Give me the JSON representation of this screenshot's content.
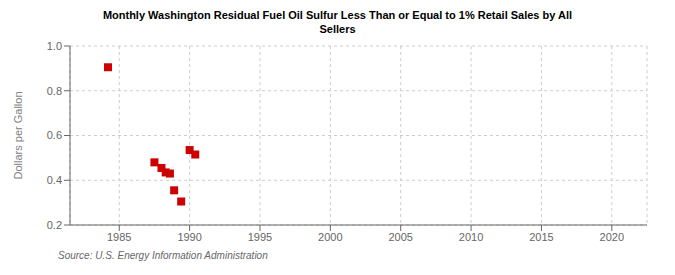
{
  "chart_data": {
    "type": "scatter",
    "title": "Monthly Washington Residual Fuel Oil Sulfur Less Than or Equal to 1% Retail Sales by All\nSellers",
    "ylabel": "Dollars per Gallon",
    "source": "Source: U.S. Energy Information Administration",
    "color": "#cc0000",
    "marker": "square",
    "grid": true,
    "xlim": [
      1981.5,
      2022.5
    ],
    "ylim": [
      0.2,
      1.0
    ],
    "xticks": [
      1985,
      1990,
      1995,
      2000,
      2005,
      2010,
      2015,
      2020
    ],
    "yticks": [
      0.2,
      0.4,
      0.6,
      0.8,
      {
        "value": 1.0,
        "label": "1.0"
      }
    ],
    "x": [
      1984.2,
      1987.5,
      1988.0,
      1988.3,
      1988.6,
      1988.9,
      1989.4,
      1990.0,
      1990.4
    ],
    "y": [
      0.905,
      0.48,
      0.455,
      0.435,
      0.43,
      0.355,
      0.305,
      0.535,
      0.515
    ]
  }
}
